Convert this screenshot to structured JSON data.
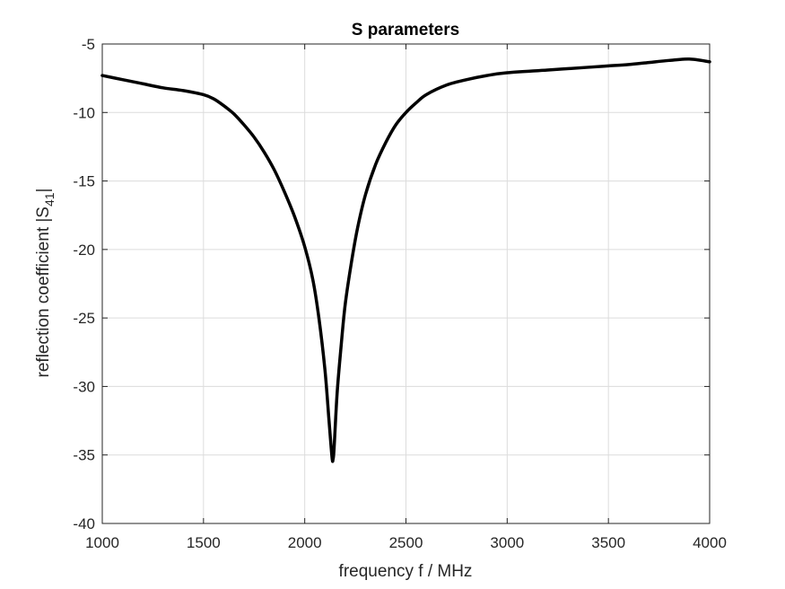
{
  "chart_data": {
    "type": "line",
    "title": "S parameters",
    "xlabel": "frequency f / MHz",
    "ylabel": {
      "prefix": "reflection coefficient |S",
      "sub": "41",
      "suffix": "|"
    },
    "xlim": [
      1000,
      4000
    ],
    "ylim": [
      -40,
      -5
    ],
    "xticks": [
      1000,
      1500,
      2000,
      2500,
      3000,
      3500,
      4000
    ],
    "yticks": [
      -40,
      -35,
      -30,
      -25,
      -20,
      -15,
      -10,
      -5
    ],
    "grid": true,
    "line_color": "#000000",
    "series": [
      {
        "x": [
          1000,
          1100,
          1200,
          1300,
          1400,
          1500,
          1550,
          1600,
          1650,
          1700,
          1750,
          1800,
          1850,
          1900,
          1950,
          2000,
          2040,
          2070,
          2100,
          2120,
          2135,
          2140,
          2145,
          2160,
          2180,
          2200,
          2230,
          2260,
          2300,
          2350,
          2400,
          2450,
          2500,
          2550,
          2600,
          2700,
          2800,
          2900,
          3000,
          3200,
          3400,
          3500,
          3600,
          3700,
          3800,
          3900,
          4000
        ],
        "y": [
          -7.3,
          -7.6,
          -7.9,
          -8.2,
          -8.4,
          -8.7,
          -9.0,
          -9.5,
          -10.1,
          -10.9,
          -11.8,
          -12.9,
          -14.2,
          -15.8,
          -17.6,
          -19.8,
          -22.2,
          -25.0,
          -28.8,
          -32.5,
          -35.2,
          -35.3,
          -34.5,
          -30.5,
          -27.0,
          -24.0,
          -21.0,
          -18.5,
          -16.0,
          -13.8,
          -12.2,
          -10.9,
          -10.0,
          -9.3,
          -8.7,
          -8.0,
          -7.6,
          -7.3,
          -7.1,
          -6.9,
          -6.7,
          -6.6,
          -6.5,
          -6.35,
          -6.2,
          -6.1,
          -6.3
        ]
      }
    ]
  }
}
